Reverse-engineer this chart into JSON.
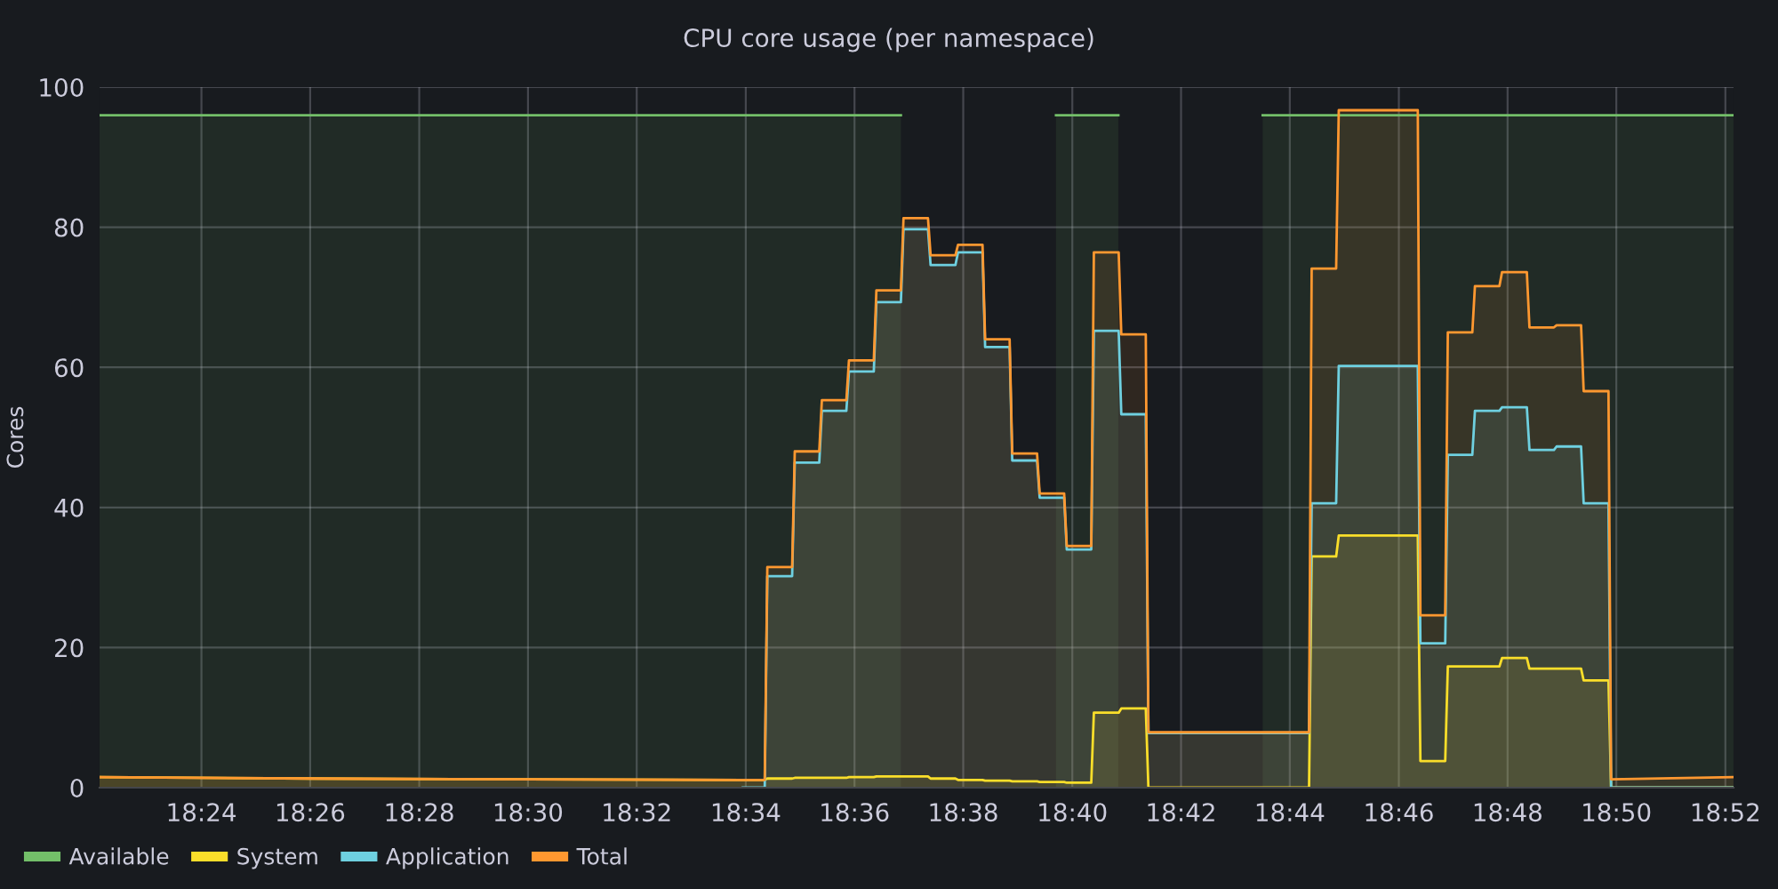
{
  "chart_data": {
    "type": "area",
    "title": "CPU core usage (per namespace)",
    "ylabel": "Cores",
    "x": [
      18.3688,
      18.4333,
      18.5,
      18.5658,
      18.5725,
      18.5733,
      18.5809,
      18.5817,
      18.5892,
      18.59,
      18.5975,
      18.5983,
      18.6059,
      18.6067,
      18.6142,
      18.615,
      18.6225,
      18.6233,
      18.6309,
      18.6317,
      18.6392,
      18.64,
      18.6475,
      18.6483,
      18.6559,
      18.6567,
      18.6642,
      18.665,
      18.6725,
      18.6733,
      18.6809,
      18.6817,
      18.6892,
      18.69,
      18.7392,
      18.74,
      18.7475,
      18.7483,
      18.7725,
      18.7733,
      18.7809,
      18.7817,
      18.7892,
      18.79,
      18.7975,
      18.7983,
      18.8059,
      18.8067,
      18.8142,
      18.815,
      18.8225,
      18.8233,
      18.8309,
      18.8317,
      18.8692
    ],
    "series": [
      {
        "name": "Available",
        "color": "#73bf69",
        "x": [
          18.3688,
          18.6142,
          18.6147,
          18.6617,
          18.6808,
          18.6813,
          18.725,
          18.8692
        ],
        "values": [
          96,
          96,
          null,
          96,
          96,
          null,
          96,
          96
        ]
      },
      {
        "name": "System",
        "color": "#fade2a",
        "values": [
          1.5,
          1.3,
          1.2,
          1.1,
          1.1,
          1.3,
          1.3,
          1.4,
          1.4,
          1.4,
          1.4,
          1.5,
          1.5,
          1.6,
          1.6,
          1.6,
          1.6,
          1.3,
          1.3,
          1.1,
          1.1,
          1.0,
          1.0,
          0.9,
          0.9,
          0.8,
          0.8,
          0.7,
          0.7,
          10.7,
          10.7,
          11.3,
          11.3,
          0,
          0,
          33,
          33,
          36,
          36,
          3.8,
          3.8,
          17.3,
          17.3,
          17.3,
          17.3,
          18.5,
          18.5,
          17,
          17,
          17,
          17,
          15.3,
          15.3,
          0,
          0
        ]
      },
      {
        "name": "Application",
        "color": "#6ed0e0",
        "values": [
          null,
          null,
          null,
          0,
          0,
          30.2,
          30.2,
          46.4,
          46.4,
          53.8,
          53.8,
          59.4,
          59.4,
          69.3,
          69.3,
          79.7,
          79.7,
          74.6,
          74.6,
          76.4,
          76.4,
          62.9,
          62.9,
          46.7,
          46.7,
          41.4,
          41.4,
          34,
          34,
          65.2,
          65.2,
          53.3,
          53.3,
          7.8,
          7.8,
          40.6,
          40.6,
          60.2,
          60.2,
          20.6,
          20.6,
          47.5,
          47.5,
          53.8,
          53.8,
          54.3,
          54.3,
          48.2,
          48.2,
          48.7,
          48.7,
          40.6,
          40.6,
          0,
          0
        ]
      },
      {
        "name": "Total",
        "color": "#ff9830",
        "values": [
          1.5,
          1.3,
          1.2,
          1.1,
          1.1,
          31.5,
          31.5,
          48,
          48,
          55.3,
          55.3,
          61,
          61,
          71,
          71,
          81.3,
          81.3,
          76,
          76,
          77.5,
          77.5,
          64,
          64,
          47.7,
          47.7,
          42,
          42,
          34.5,
          34.5,
          76.4,
          76.4,
          64.7,
          64.7,
          7.9,
          7.9,
          74.1,
          74.1,
          96.7,
          96.7,
          24.6,
          24.6,
          65,
          65,
          71.6,
          71.6,
          73.6,
          73.6,
          65.7,
          65.7,
          66,
          66,
          56.6,
          56.6,
          1.2,
          1.5
        ]
      }
    ],
    "xlim": [
      18.3688,
      18.8692
    ],
    "xticks": [
      {
        "value": 18.4,
        "label": "18:24"
      },
      {
        "value": 18.4333,
        "label": "18:26"
      },
      {
        "value": 18.4667,
        "label": "18:28"
      },
      {
        "value": 18.5,
        "label": "18:30"
      },
      {
        "value": 18.5333,
        "label": "18:32"
      },
      {
        "value": 18.5667,
        "label": "18:34"
      },
      {
        "value": 18.6,
        "label": "18:36"
      },
      {
        "value": 18.6333,
        "label": "18:38"
      },
      {
        "value": 18.6667,
        "label": "18:40"
      },
      {
        "value": 18.7,
        "label": "18:42"
      },
      {
        "value": 18.7333,
        "label": "18:44"
      },
      {
        "value": 18.7667,
        "label": "18:46"
      },
      {
        "value": 18.8,
        "label": "18:48"
      },
      {
        "value": 18.8333,
        "label": "18:50"
      },
      {
        "value": 18.8667,
        "label": "18:52"
      }
    ],
    "ylim": [
      0,
      100
    ],
    "yticks": [
      0,
      20,
      40,
      60,
      80,
      100
    ],
    "grid": true,
    "legend": "bottom left"
  }
}
